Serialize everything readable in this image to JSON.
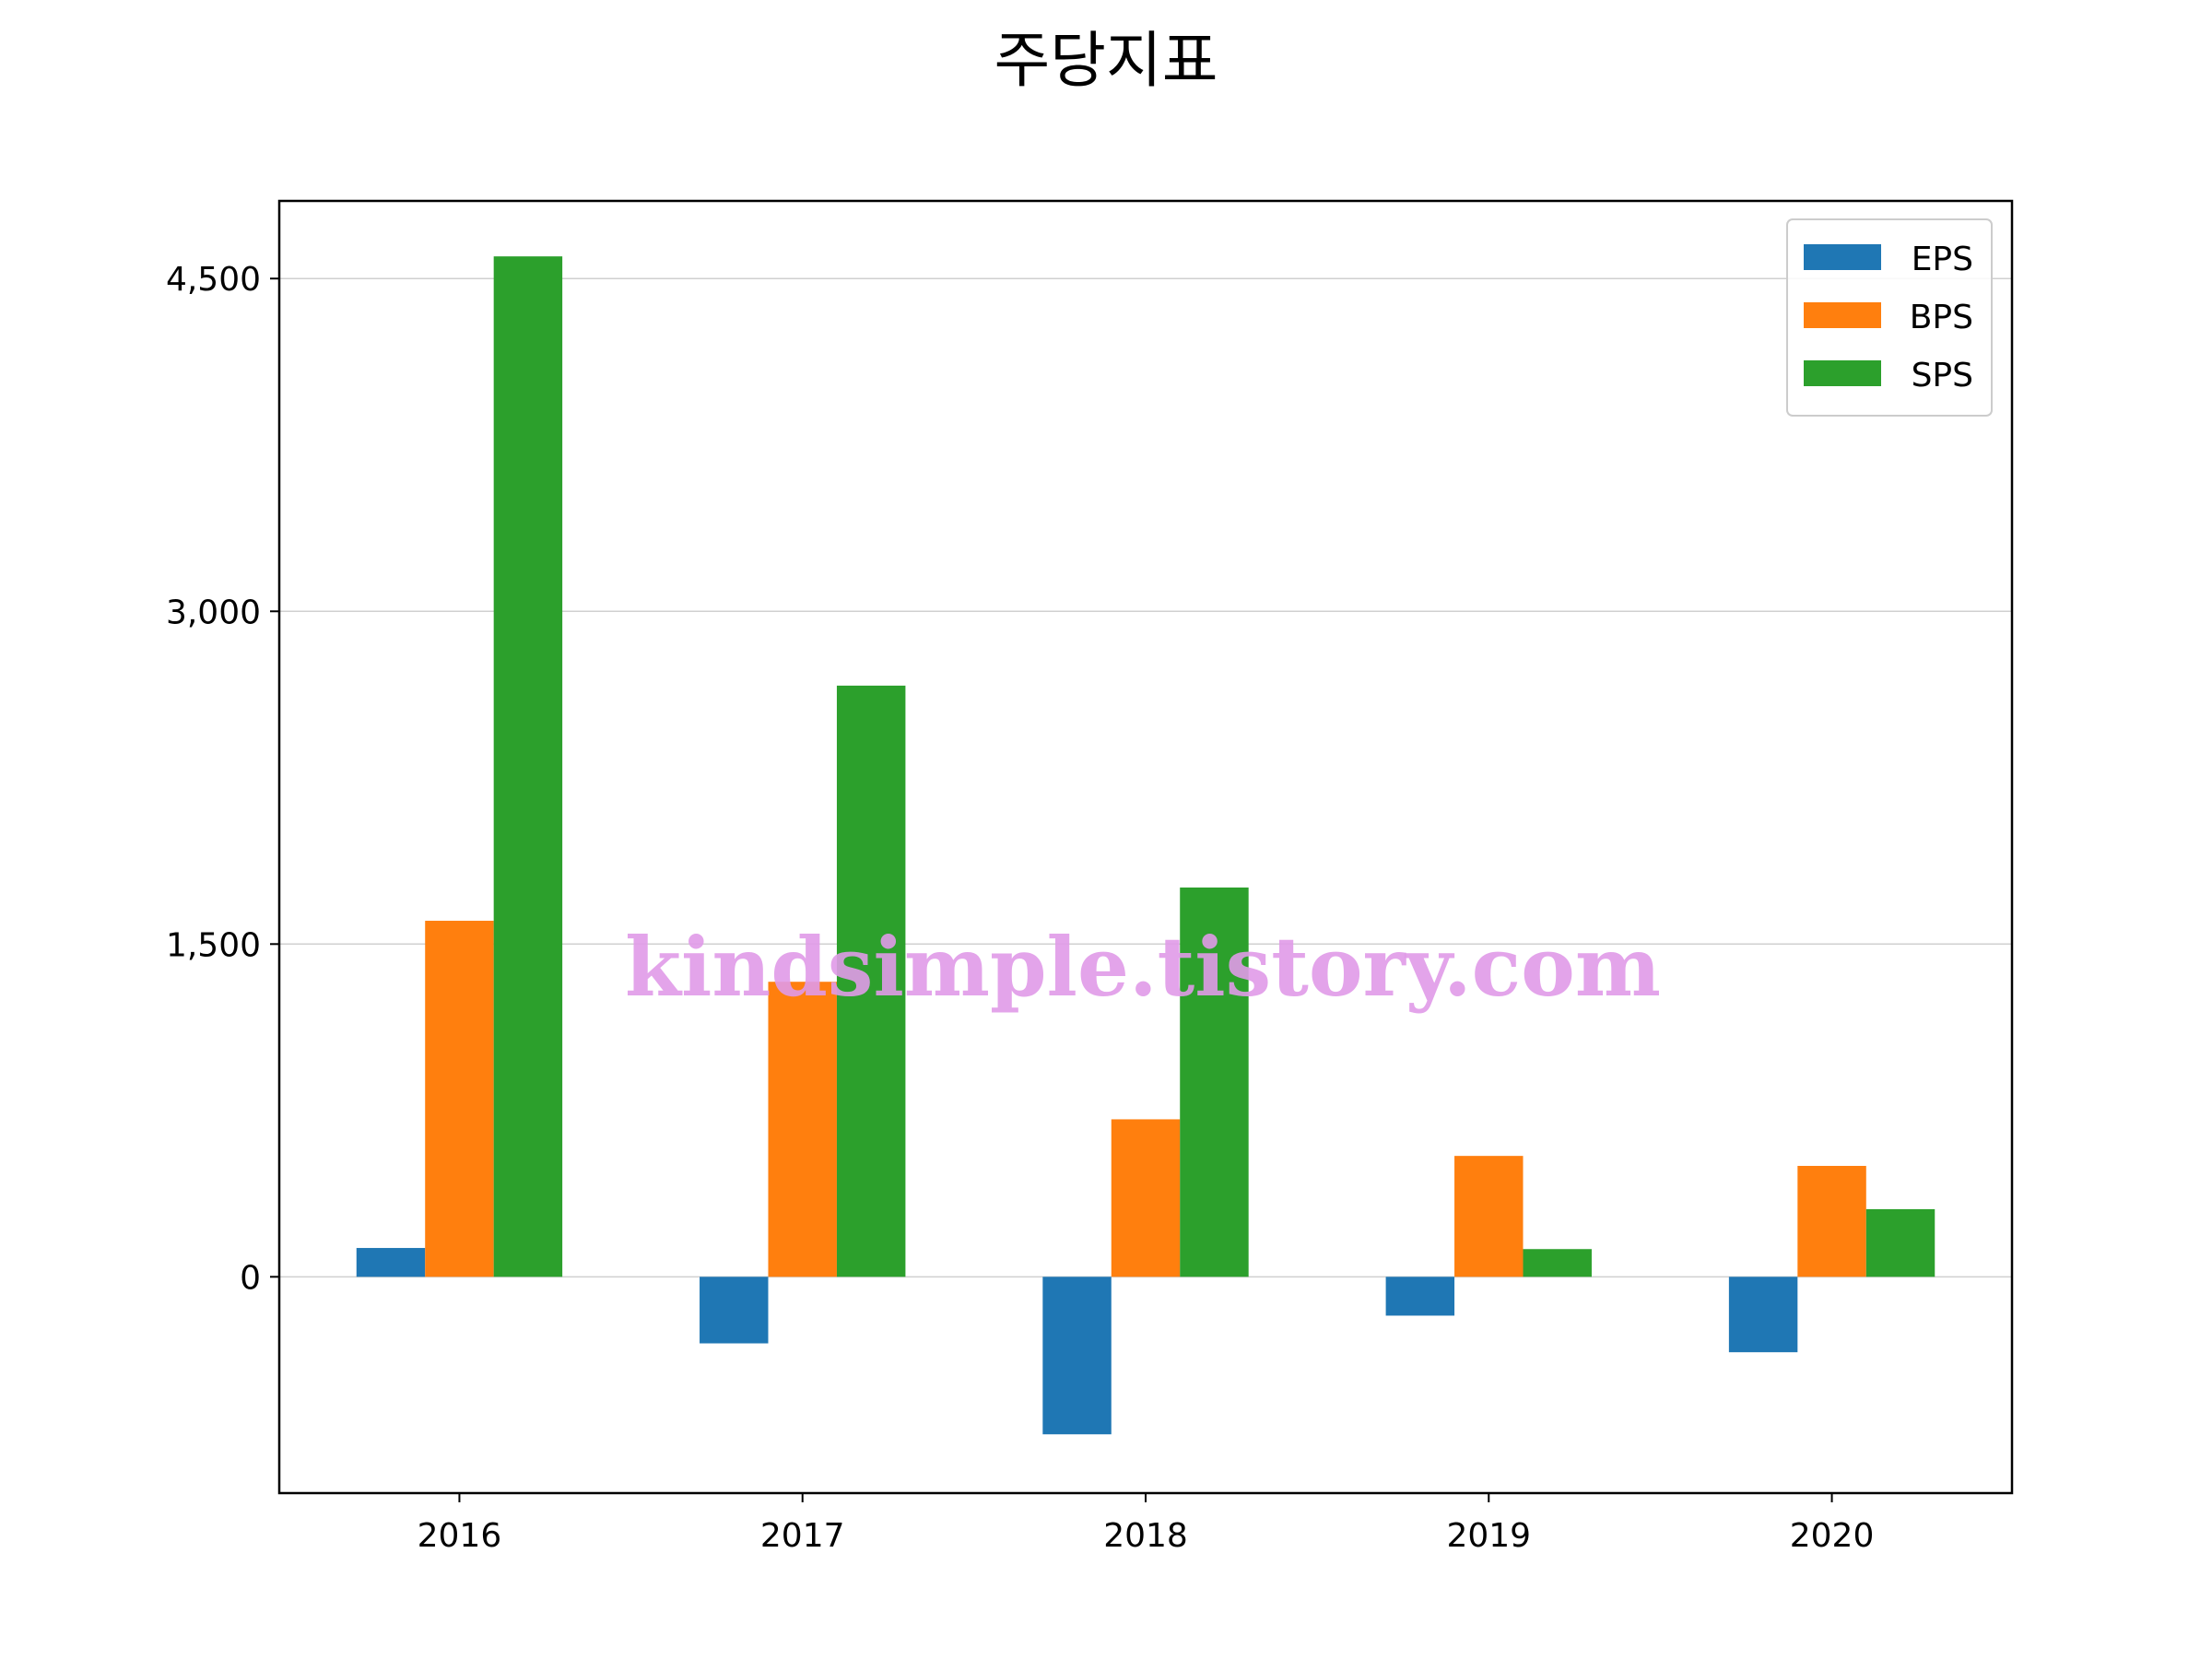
{
  "watermark": "kindsimple.tistory.com",
  "chart_data": {
    "type": "bar",
    "title": "주당지표",
    "xlabel": "",
    "ylabel": "",
    "categories": [
      "2016",
      "2017",
      "2018",
      "2019",
      "2020"
    ],
    "series": [
      {
        "name": "EPS",
        "color": "#1f77b4",
        "values": [
          130,
          -300,
          -710,
          -175,
          -340
        ]
      },
      {
        "name": "BPS",
        "color": "#ff7f0e",
        "values": [
          1605,
          1330,
          710,
          545,
          500
        ]
      },
      {
        "name": "SPS",
        "color": "#2ca02c",
        "values": [
          4600,
          2665,
          1755,
          125,
          305
        ]
      }
    ],
    "ylim": [
      -975,
      4850
    ],
    "yticks": [
      0,
      1500,
      3000,
      4500
    ],
    "ytick_labels": [
      "0",
      "1,500",
      "3,000",
      "4,500"
    ],
    "grid": {
      "y": true,
      "x": false
    },
    "legend_position": "top-right"
  }
}
